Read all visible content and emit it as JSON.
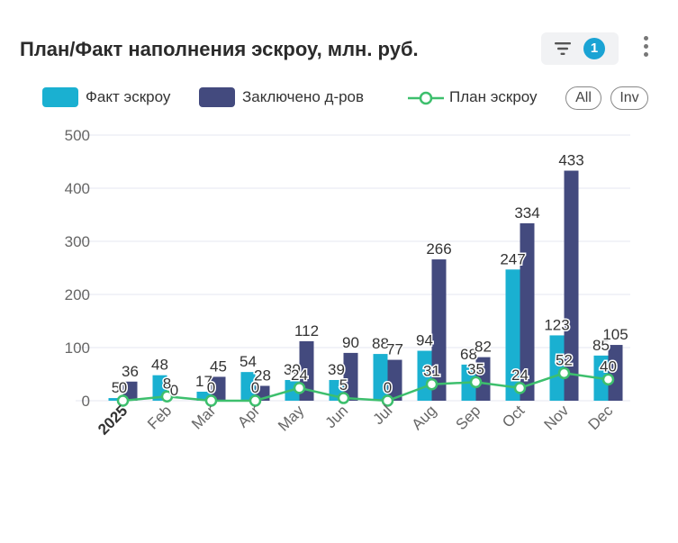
{
  "header": {
    "title": "План/Факт наполнения эскроу, млн. руб.",
    "filter_count": "1"
  },
  "legend": {
    "items": [
      {
        "label": "Факт эскроу",
        "color": "#1ab0d1"
      },
      {
        "label": "Заключено д-ров",
        "color": "#434a7e"
      },
      {
        "label": "План эскроу",
        "color": "#3dbf6d"
      }
    ],
    "all_label": "All",
    "inv_label": "Inv"
  },
  "chart_data": {
    "type": "bar",
    "categories": [
      "2025",
      "Feb",
      "Mar",
      "Apr",
      "May",
      "Jun",
      "Jul",
      "Aug",
      "Sep",
      "Oct",
      "Nov",
      "Dec"
    ],
    "series": [
      {
        "name": "Факт эскроу",
        "type": "bar",
        "color": "#1ab0d1",
        "values": [
          5,
          48,
          17,
          54,
          39,
          39,
          88,
          94,
          68,
          247,
          123,
          85
        ]
      },
      {
        "name": "Заключено д-ров",
        "type": "bar",
        "color": "#434a7e",
        "values": [
          36,
          0,
          45,
          28,
          112,
          90,
          77,
          266,
          82,
          334,
          433,
          105
        ]
      },
      {
        "name": "План эскроу",
        "type": "line",
        "color": "#3dbf6d",
        "values": [
          0,
          8,
          0,
          0,
          24,
          5,
          0,
          31,
          35,
          24,
          52,
          40
        ]
      }
    ],
    "ylim": [
      0,
      500
    ],
    "yticks": [
      0,
      100,
      200,
      300,
      400,
      500
    ],
    "grid": true,
    "legend_position": "top-left"
  }
}
